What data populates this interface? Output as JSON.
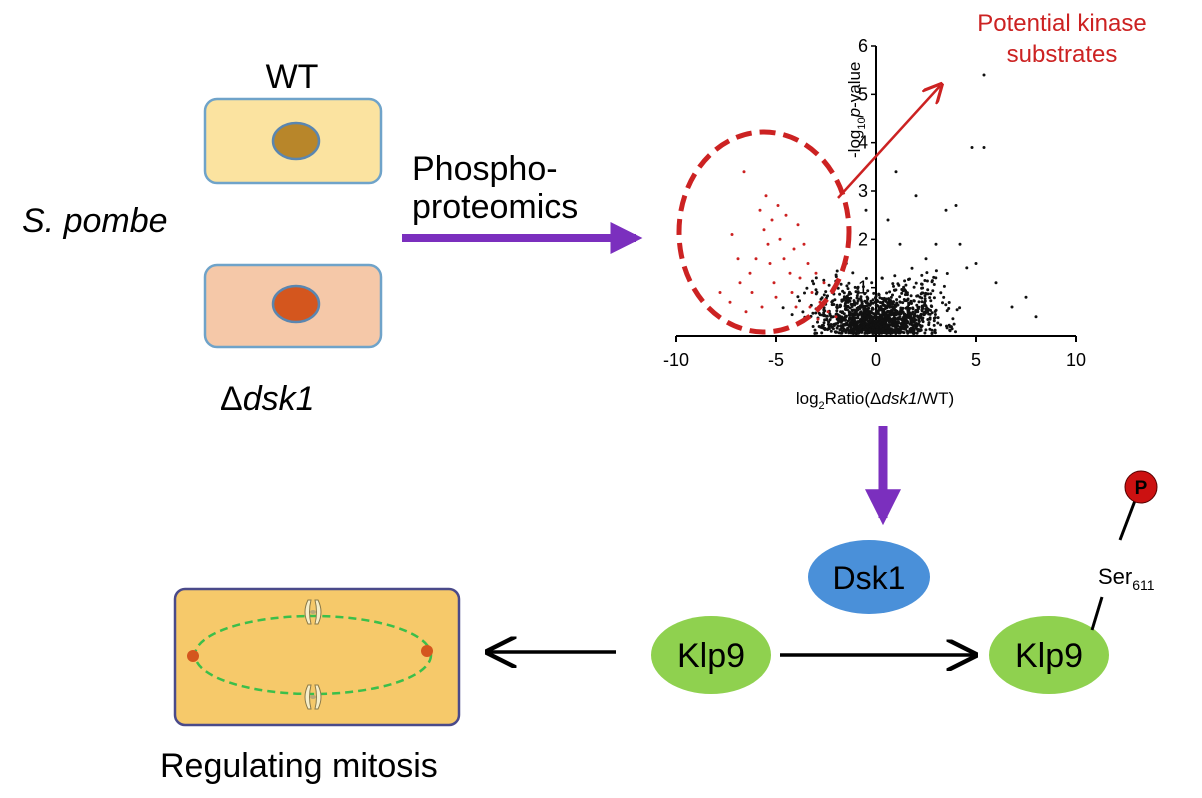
{
  "cells": {
    "wt_label": "WT",
    "mutant_label_delta": "Δ",
    "mutant_label_gene": "dsk1",
    "organism": "S. pombe"
  },
  "arrow_label": {
    "line1": "Phospho-",
    "line2": "proteomics"
  },
  "plot": {
    "callout_line1": "Potential kinase",
    "callout_line2": "substrates",
    "ylabel_pre": "-log",
    "ylabel_sub": "10",
    "ylabel_p": "p",
    "ylabel_post": "-value",
    "xlabel_pre": "log",
    "xlabel_sub": "2",
    "xlabel_mid": "Ratio(Δ",
    "xlabel_gene": "dsk1",
    "xlabel_post": "/WT)"
  },
  "pathway": {
    "kinase": "Dsk1",
    "substrate": "Klp9",
    "substrate_phospho": "Klp9",
    "phospho_mark": "P",
    "site_residue": "Ser",
    "site_number": "611"
  },
  "outcome": "Regulating mitosis",
  "colors": {
    "arrow_purple": "#7b2fbe",
    "highlight_red": "#cc2222",
    "protein_green": "#8fd14f",
    "kinase_blue": "#4a90d9",
    "wt_cell": "#fbe3a0",
    "mutant_cell": "#f5c8a8",
    "mitosis_cell": "#f6c96a",
    "spindle_green": "#3bbf4a"
  },
  "chart_data": {
    "type": "scatter",
    "x_ticks": [
      "-10",
      "-5",
      "0",
      "5",
      "10"
    ],
    "y_ticks": [
      "1",
      "2",
      "3",
      "4",
      "5",
      "6"
    ],
    "xlim": [
      -10,
      10
    ],
    "ylim": [
      0,
      6
    ],
    "series": [
      {
        "color": "#cc2222",
        "points": [
          [
            -7.8,
            0.9
          ],
          [
            -7.3,
            0.7
          ],
          [
            -6.8,
            1.1
          ],
          [
            -6.5,
            0.5
          ],
          [
            -6.2,
            0.9
          ],
          [
            -6.0,
            1.6
          ],
          [
            -5.8,
            2.6
          ],
          [
            -5.6,
            2.2
          ],
          [
            -5.4,
            1.9
          ],
          [
            -5.3,
            1.5
          ],
          [
            -5.1,
            1.1
          ],
          [
            -5.0,
            0.8
          ],
          [
            -4.8,
            2.0
          ],
          [
            -4.6,
            1.6
          ],
          [
            -4.5,
            2.5
          ],
          [
            -4.3,
            1.3
          ],
          [
            -4.1,
            1.8
          ],
          [
            -4.0,
            0.6
          ],
          [
            -3.8,
            1.2
          ],
          [
            -3.6,
            1.9
          ],
          [
            -3.4,
            1.5
          ],
          [
            -3.2,
            0.9
          ],
          [
            -3.0,
            1.3
          ],
          [
            -2.8,
            0.7
          ],
          [
            -2.6,
            1.1
          ],
          [
            -2.4,
            0.5
          ],
          [
            -2.2,
            0.9
          ],
          [
            -6.6,
            3.4
          ],
          [
            -5.5,
            2.9
          ],
          [
            -7.2,
            2.1
          ],
          [
            -6.3,
            1.3
          ],
          [
            -4.9,
            2.7
          ],
          [
            -3.9,
            2.3
          ],
          [
            -5.7,
            0.6
          ],
          [
            -4.2,
            0.9
          ],
          [
            -3.3,
            0.6
          ],
          [
            -2.9,
            0.35
          ],
          [
            -2.0,
            0.4
          ],
          [
            -6.9,
            1.6
          ],
          [
            -5.2,
            2.4
          ]
        ]
      },
      {
        "color": "#111111",
        "points": [
          [
            1.0,
            3.4
          ],
          [
            2.0,
            2.9
          ],
          [
            3.5,
            2.6
          ],
          [
            4.0,
            2.7
          ],
          [
            4.8,
            3.9
          ],
          [
            5.4,
            3.9
          ],
          [
            5.4,
            5.4
          ],
          [
            3.0,
            1.9
          ],
          [
            2.5,
            1.6
          ],
          [
            6.0,
            1.1
          ],
          [
            6.8,
            0.6
          ],
          [
            7.5,
            0.8
          ],
          [
            8.0,
            0.4
          ],
          [
            5.0,
            1.5
          ],
          [
            4.2,
            1.9
          ],
          [
            1.2,
            1.9
          ],
          [
            0.6,
            2.4
          ],
          [
            -0.5,
            2.6
          ],
          [
            0.3,
            1.2
          ],
          [
            1.8,
            1.4
          ]
        ]
      }
    ]
  }
}
